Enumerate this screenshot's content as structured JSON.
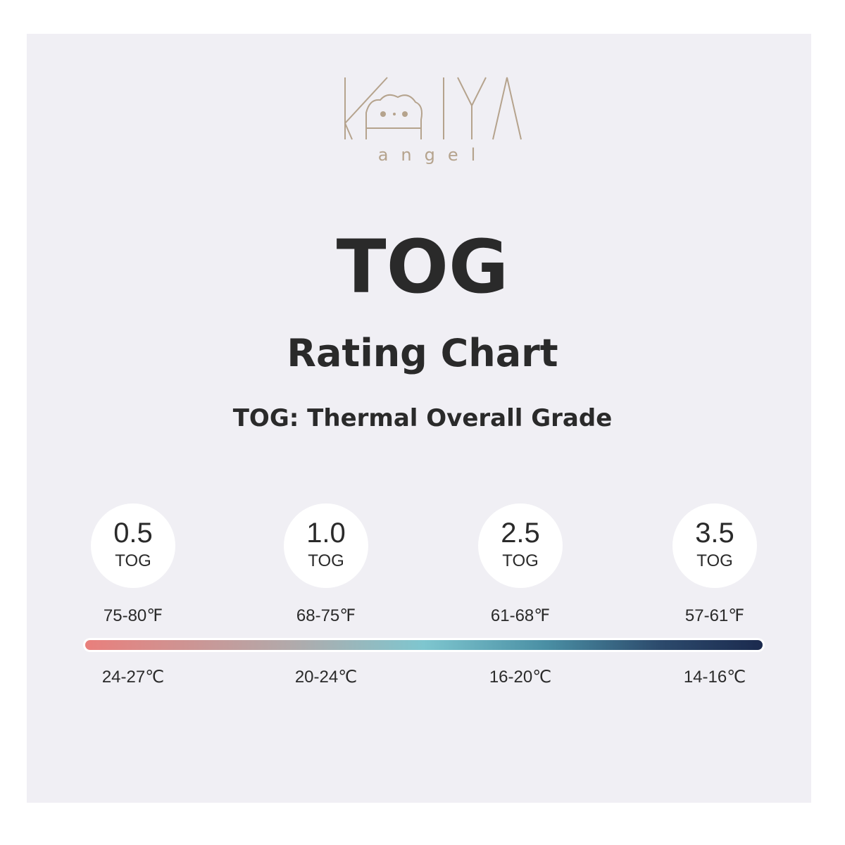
{
  "logo": {
    "subtext": "angel"
  },
  "title": "TOG",
  "subtitle": "Rating Chart",
  "definition": "TOG: Thermal Overall Grade",
  "grades": [
    {
      "rating": "0.5",
      "unit": "TOG",
      "fahrenheit": "75-80℉",
      "celsius": "24-27℃"
    },
    {
      "rating": "1.0",
      "unit": "TOG",
      "fahrenheit": "68-75℉",
      "celsius": "20-24℃"
    },
    {
      "rating": "2.5",
      "unit": "TOG",
      "fahrenheit": "61-68℉",
      "celsius": "16-20℃"
    },
    {
      "rating": "3.5",
      "unit": "TOG",
      "fahrenheit": "57-61℉",
      "celsius": "14-16℃"
    }
  ]
}
